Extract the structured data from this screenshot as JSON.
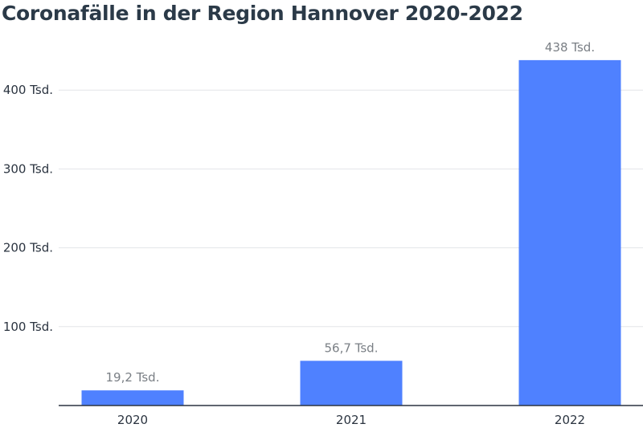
{
  "chart_data": {
    "type": "bar",
    "title": "Coronafälle in der Region Hannover 2020-2022",
    "xlabel": "",
    "ylabel": "",
    "categories": [
      "2020",
      "2021",
      "2022"
    ],
    "values": [
      19.2,
      56.7,
      438
    ],
    "data_labels": [
      "19,2 Tsd.",
      "56,7 Tsd.",
      "438 Tsd."
    ],
    "ylim": [
      0,
      450
    ],
    "yticks": [
      100,
      200,
      300,
      400
    ],
    "ytick_labels": [
      "100 Tsd.",
      "200 Tsd.",
      "300 Tsd.",
      "400 Tsd."
    ],
    "grid": true,
    "legend": "none"
  },
  "colors": {
    "bar": "#4f81ff",
    "grid": "#e3e5e8",
    "axis": "#2b3440"
  }
}
